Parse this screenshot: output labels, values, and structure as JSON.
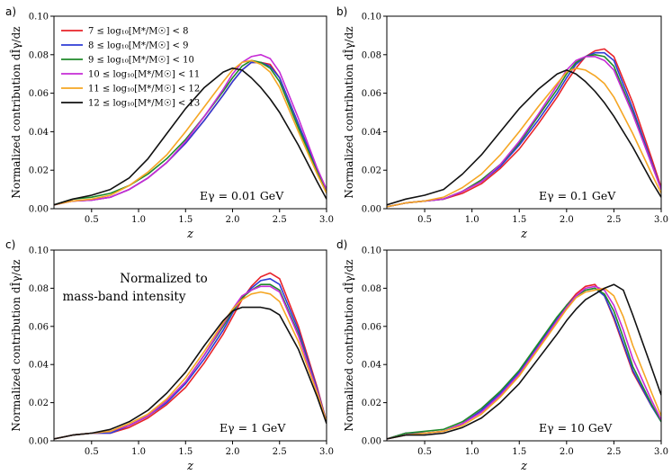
{
  "colors": {
    "m7_8": "#e8232a",
    "m8_9": "#2e3bd6",
    "m9_10": "#1f8a2a",
    "m10_11": "#c62bd6",
    "m11_12": "#f5a623",
    "m12_13": "#111111"
  },
  "legend": {
    "entries": [
      {
        "key": "m7_8",
        "label": "7 ≤ log₁₀[M*/M☉] < 8"
      },
      {
        "key": "m8_9",
        "label": "8 ≤ log₁₀[M*/M☉] < 9"
      },
      {
        "key": "m9_10",
        "label": "9 ≤ log₁₀[M*/M☉] < 10"
      },
      {
        "key": "m10_11",
        "label": "10 ≤ log₁₀[M*/M☉] < 11"
      },
      {
        "key": "m11_12",
        "label": "11 ≤ log₁₀[M*/M☉] < 12"
      },
      {
        "key": "m12_13",
        "label": "12 ≤ log₁₀[M*/M☉] < 13"
      }
    ]
  },
  "chart_data": [
    {
      "type": "line",
      "panel": "a)",
      "annotation": "Eγ = 0.01 GeV",
      "xlabel": "z",
      "ylabel": "Normalized contribution dÎγ/dz",
      "xlim": [
        0.1,
        3.0
      ],
      "ylim": [
        0.0,
        0.1
      ],
      "xticks": [
        0.5,
        1.0,
        1.5,
        2.0,
        2.5,
        3.0
      ],
      "yticks": [
        0.0,
        0.02,
        0.04,
        0.06,
        0.08,
        0.1
      ],
      "x": [
        0.1,
        0.3,
        0.5,
        0.7,
        0.9,
        1.1,
        1.3,
        1.5,
        1.7,
        1.9,
        2.0,
        2.1,
        2.2,
        2.3,
        2.4,
        2.5,
        2.7,
        2.9,
        3.0
      ],
      "series": [
        {
          "key": "m7_8",
          "values": [
            0.002,
            0.004,
            0.0045,
            0.006,
            0.01,
            0.016,
            0.024,
            0.034,
            0.046,
            0.059,
            0.066,
            0.072,
            0.076,
            0.076,
            0.075,
            0.068,
            0.044,
            0.02,
            0.01
          ]
        },
        {
          "key": "m8_9",
          "values": [
            0.002,
            0.004,
            0.0045,
            0.006,
            0.01,
            0.016,
            0.024,
            0.034,
            0.046,
            0.059,
            0.066,
            0.072,
            0.076,
            0.076,
            0.074,
            0.068,
            0.044,
            0.02,
            0.01
          ]
        },
        {
          "key": "m9_10",
          "values": [
            0.002,
            0.005,
            0.006,
            0.008,
            0.012,
            0.018,
            0.026,
            0.036,
            0.048,
            0.061,
            0.068,
            0.074,
            0.077,
            0.076,
            0.073,
            0.066,
            0.042,
            0.019,
            0.009
          ]
        },
        {
          "key": "m10_11",
          "values": [
            0.002,
            0.004,
            0.0045,
            0.006,
            0.01,
            0.016,
            0.024,
            0.035,
            0.048,
            0.062,
            0.07,
            0.076,
            0.079,
            0.08,
            0.078,
            0.071,
            0.047,
            0.021,
            0.01
          ]
        },
        {
          "key": "m11_12",
          "values": [
            0.002,
            0.004,
            0.005,
            0.007,
            0.012,
            0.019,
            0.028,
            0.04,
            0.053,
            0.066,
            0.072,
            0.076,
            0.077,
            0.075,
            0.071,
            0.063,
            0.04,
            0.018,
            0.008
          ]
        },
        {
          "key": "m12_13",
          "values": [
            0.002,
            0.005,
            0.007,
            0.01,
            0.016,
            0.026,
            0.039,
            0.052,
            0.063,
            0.071,
            0.073,
            0.072,
            0.068,
            0.063,
            0.057,
            0.05,
            0.033,
            0.014,
            0.005
          ]
        }
      ]
    },
    {
      "type": "line",
      "panel": "b)",
      "annotation": "Eγ = 0.1 GeV",
      "xlabel": "z",
      "ylabel": "Normalized contribution dÎγ/dz",
      "xlim": [
        0.1,
        3.0
      ],
      "ylim": [
        0.0,
        0.1
      ],
      "xticks": [
        0.5,
        1.0,
        1.5,
        2.0,
        2.5,
        3.0
      ],
      "yticks": [
        0.0,
        0.02,
        0.04,
        0.06,
        0.08,
        0.1
      ],
      "x": [
        0.1,
        0.3,
        0.5,
        0.7,
        0.9,
        1.1,
        1.3,
        1.5,
        1.7,
        1.9,
        2.0,
        2.1,
        2.2,
        2.3,
        2.4,
        2.5,
        2.7,
        2.9,
        3.0
      ],
      "series": [
        {
          "key": "m7_8",
          "values": [
            0.001,
            0.003,
            0.004,
            0.005,
            0.008,
            0.013,
            0.021,
            0.031,
            0.044,
            0.058,
            0.066,
            0.073,
            0.079,
            0.082,
            0.083,
            0.079,
            0.055,
            0.026,
            0.011
          ]
        },
        {
          "key": "m8_9",
          "values": [
            0.001,
            0.003,
            0.004,
            0.005,
            0.009,
            0.014,
            0.022,
            0.033,
            0.046,
            0.06,
            0.068,
            0.075,
            0.079,
            0.081,
            0.081,
            0.077,
            0.052,
            0.024,
            0.01
          ]
        },
        {
          "key": "m9_10",
          "values": [
            0.001,
            0.003,
            0.004,
            0.005,
            0.009,
            0.015,
            0.023,
            0.034,
            0.048,
            0.062,
            0.07,
            0.076,
            0.079,
            0.08,
            0.079,
            0.074,
            0.05,
            0.023,
            0.01
          ]
        },
        {
          "key": "m10_11",
          "values": [
            0.001,
            0.003,
            0.004,
            0.005,
            0.009,
            0.014,
            0.023,
            0.035,
            0.049,
            0.064,
            0.072,
            0.077,
            0.079,
            0.079,
            0.077,
            0.072,
            0.049,
            0.023,
            0.01
          ]
        },
        {
          "key": "m11_12",
          "values": [
            0.001,
            0.003,
            0.004,
            0.006,
            0.011,
            0.018,
            0.028,
            0.04,
            0.053,
            0.065,
            0.071,
            0.073,
            0.072,
            0.069,
            0.065,
            0.058,
            0.039,
            0.018,
            0.008
          ]
        },
        {
          "key": "m12_13",
          "values": [
            0.002,
            0.005,
            0.007,
            0.01,
            0.018,
            0.028,
            0.04,
            0.052,
            0.062,
            0.07,
            0.072,
            0.07,
            0.066,
            0.061,
            0.055,
            0.048,
            0.032,
            0.014,
            0.006
          ]
        }
      ]
    },
    {
      "type": "line",
      "panel": "c)",
      "annotation": "Eγ = 1 GeV",
      "note_lines": [
        "Normalized to",
        "mass-band intensity"
      ],
      "xlabel": "z",
      "ylabel": "Normalized contribution dÎγ/dz",
      "xlim": [
        0.1,
        3.0
      ],
      "ylim": [
        0.0,
        0.1
      ],
      "xticks": [
        0.5,
        1.0,
        1.5,
        2.0,
        2.5,
        3.0
      ],
      "yticks": [
        0.0,
        0.02,
        0.04,
        0.06,
        0.08,
        0.1
      ],
      "x": [
        0.1,
        0.3,
        0.5,
        0.7,
        0.9,
        1.1,
        1.3,
        1.5,
        1.7,
        1.9,
        2.0,
        2.1,
        2.2,
        2.3,
        2.4,
        2.5,
        2.7,
        2.9,
        3.0
      ],
      "series": [
        {
          "key": "m7_8",
          "values": [
            0.001,
            0.003,
            0.004,
            0.004,
            0.007,
            0.012,
            0.019,
            0.028,
            0.041,
            0.056,
            0.065,
            0.074,
            0.081,
            0.086,
            0.088,
            0.085,
            0.06,
            0.028,
            0.01
          ]
        },
        {
          "key": "m8_9",
          "values": [
            0.001,
            0.003,
            0.004,
            0.004,
            0.008,
            0.013,
            0.02,
            0.03,
            0.043,
            0.058,
            0.067,
            0.075,
            0.08,
            0.084,
            0.085,
            0.082,
            0.058,
            0.027,
            0.01
          ]
        },
        {
          "key": "m9_10",
          "values": [
            0.001,
            0.003,
            0.004,
            0.005,
            0.008,
            0.013,
            0.021,
            0.031,
            0.045,
            0.06,
            0.068,
            0.075,
            0.079,
            0.082,
            0.082,
            0.079,
            0.056,
            0.026,
            0.01
          ]
        },
        {
          "key": "m10_11",
          "values": [
            0.001,
            0.003,
            0.004,
            0.005,
            0.008,
            0.013,
            0.021,
            0.031,
            0.045,
            0.061,
            0.069,
            0.076,
            0.079,
            0.081,
            0.081,
            0.078,
            0.055,
            0.026,
            0.01
          ]
        },
        {
          "key": "m11_12",
          "values": [
            0.001,
            0.003,
            0.004,
            0.005,
            0.009,
            0.014,
            0.022,
            0.033,
            0.047,
            0.062,
            0.069,
            0.074,
            0.077,
            0.078,
            0.077,
            0.073,
            0.052,
            0.025,
            0.01
          ]
        },
        {
          "key": "m12_13",
          "values": [
            0.001,
            0.003,
            0.004,
            0.006,
            0.01,
            0.016,
            0.025,
            0.036,
            0.05,
            0.063,
            0.068,
            0.07,
            0.07,
            0.07,
            0.069,
            0.066,
            0.048,
            0.023,
            0.009
          ]
        }
      ]
    },
    {
      "type": "line",
      "panel": "d)",
      "annotation": "Eγ = 10 GeV",
      "xlabel": "z",
      "ylabel": "Normalized contribution dÎγ/dz",
      "xlim": [
        0.1,
        3.0
      ],
      "ylim": [
        0.0,
        0.1
      ],
      "xticks": [
        0.5,
        1.0,
        1.5,
        2.0,
        2.5,
        3.0
      ],
      "yticks": [
        0.0,
        0.02,
        0.04,
        0.06,
        0.08,
        0.1
      ],
      "x": [
        0.1,
        0.3,
        0.5,
        0.7,
        0.9,
        1.1,
        1.3,
        1.5,
        1.7,
        1.9,
        2.0,
        2.1,
        2.2,
        2.3,
        2.4,
        2.5,
        2.6,
        2.7,
        2.9,
        3.0
      ],
      "series": [
        {
          "key": "m7_8",
          "values": [
            0.001,
            0.004,
            0.004,
            0.005,
            0.009,
            0.016,
            0.025,
            0.036,
            0.05,
            0.064,
            0.071,
            0.077,
            0.081,
            0.082,
            0.076,
            0.064,
            0.05,
            0.036,
            0.018,
            0.011
          ]
        },
        {
          "key": "m8_9",
          "values": [
            0.001,
            0.004,
            0.004,
            0.005,
            0.009,
            0.016,
            0.025,
            0.036,
            0.05,
            0.064,
            0.071,
            0.076,
            0.079,
            0.08,
            0.076,
            0.065,
            0.051,
            0.037,
            0.018,
            0.01
          ]
        },
        {
          "key": "m9_10",
          "values": [
            0.001,
            0.004,
            0.005,
            0.006,
            0.01,
            0.017,
            0.026,
            0.037,
            0.051,
            0.065,
            0.071,
            0.076,
            0.079,
            0.08,
            0.077,
            0.068,
            0.054,
            0.039,
            0.019,
            0.01
          ]
        },
        {
          "key": "m10_11",
          "values": [
            0.001,
            0.003,
            0.004,
            0.005,
            0.009,
            0.015,
            0.024,
            0.035,
            0.049,
            0.063,
            0.07,
            0.076,
            0.08,
            0.081,
            0.079,
            0.071,
            0.058,
            0.043,
            0.021,
            0.011
          ]
        },
        {
          "key": "m11_12",
          "values": [
            0.001,
            0.003,
            0.004,
            0.005,
            0.008,
            0.014,
            0.023,
            0.034,
            0.048,
            0.062,
            0.069,
            0.075,
            0.078,
            0.079,
            0.08,
            0.076,
            0.065,
            0.05,
            0.025,
            0.013
          ]
        },
        {
          "key": "m12_13",
          "values": [
            0.001,
            0.003,
            0.003,
            0.004,
            0.007,
            0.012,
            0.02,
            0.03,
            0.043,
            0.056,
            0.063,
            0.069,
            0.074,
            0.077,
            0.08,
            0.082,
            0.079,
            0.066,
            0.038,
            0.024
          ]
        }
      ]
    }
  ]
}
